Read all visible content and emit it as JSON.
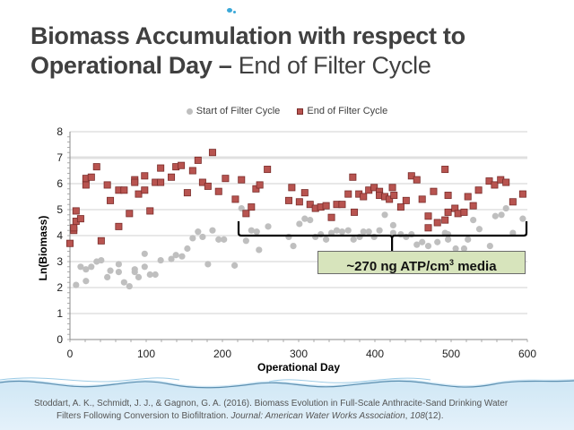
{
  "slide": {
    "title_bold": "Biomass Accumulation with respect to Operational Day –",
    "title_bold_line1": "Biomass Accumulation with respect to",
    "title_bold_line2": "Operational Day –",
    "title_light": "End of Filter Cycle",
    "callout_prefix": "~270 ng ATP/cm",
    "callout_sup": "3",
    "callout_suffix": " media",
    "citation_line1": "Stoddart, A. K., Schmidt, J. J., & Gagnon, G. A. (2016). Biomass Evolution in Full-Scale Anthracite-Sand Drinking Water",
    "citation_line2_plain": "Filters Following Conversion to Biofiltration.",
    "citation_journal": "Journal: American Water Works Association",
    "citation_volume": "108",
    "citation_issue": "(12)."
  },
  "chart_data": {
    "type": "scatter",
    "title": "",
    "xlabel": "Operational Day",
    "ylabel": "Ln(Biomass)",
    "xlim": [
      0,
      600
    ],
    "ylim": [
      0,
      8
    ],
    "xticks": [
      0,
      100,
      200,
      300,
      400,
      500,
      600
    ],
    "yticks": [
      0,
      1,
      2,
      3,
      4,
      5,
      6,
      7,
      8
    ],
    "grid": "horizontal",
    "legend_position": "top-center",
    "colors": {
      "start": "#bfbfbf",
      "end": "#b85450",
      "end_border": "#7a2c2a"
    },
    "annotation": {
      "text": "~270 ng ATP/cm3 media",
      "brace_x_range": [
        225,
        600
      ],
      "brace_y": 4.0
    },
    "series": [
      {
        "name": "Start of Filter Cycle",
        "marker": "circle",
        "points": [
          [
            8,
            2.1
          ],
          [
            14,
            2.8
          ],
          [
            21,
            2.7
          ],
          [
            21,
            2.25
          ],
          [
            28,
            2.8
          ],
          [
            35,
            3.0
          ],
          [
            41,
            3.05
          ],
          [
            49,
            2.4
          ],
          [
            53,
            2.65
          ],
          [
            64,
            2.9
          ],
          [
            64,
            2.6
          ],
          [
            71,
            2.2
          ],
          [
            78,
            2.05
          ],
          [
            85,
            2.7
          ],
          [
            85,
            2.6
          ],
          [
            90,
            2.4
          ],
          [
            98,
            3.3
          ],
          [
            98,
            2.8
          ],
          [
            105,
            2.5
          ],
          [
            112,
            2.5
          ],
          [
            119,
            3.05
          ],
          [
            133,
            3.1
          ],
          [
            139,
            3.25
          ],
          [
            147,
            3.2
          ],
          [
            154,
            3.5
          ],
          [
            161,
            3.9
          ],
          [
            168,
            4.15
          ],
          [
            174,
            3.95
          ],
          [
            181,
            2.9
          ],
          [
            187,
            4.2
          ],
          [
            195,
            3.85
          ],
          [
            202,
            3.85
          ],
          [
            216,
            2.85
          ],
          [
            225,
            5.05
          ],
          [
            231,
            3.8
          ],
          [
            238,
            4.2
          ],
          [
            245,
            4.15
          ],
          [
            248,
            3.45
          ],
          [
            260,
            4.35
          ],
          [
            287,
            3.95
          ],
          [
            293,
            3.6
          ],
          [
            301,
            4.45
          ],
          [
            308,
            4.65
          ],
          [
            315,
            4.6
          ],
          [
            322,
            3.95
          ],
          [
            329,
            4.05
          ],
          [
            336,
            3.85
          ],
          [
            343,
            4.1
          ],
          [
            350,
            4.2
          ],
          [
            357,
            4.15
          ],
          [
            365,
            4.2
          ],
          [
            372,
            3.85
          ],
          [
            380,
            3.95
          ],
          [
            385,
            4.15
          ],
          [
            392,
            4.15
          ],
          [
            399,
            3.95
          ],
          [
            406,
            4.2
          ],
          [
            413,
            4.8
          ],
          [
            424,
            4.4
          ],
          [
            424,
            4.1
          ],
          [
            434,
            4.05
          ],
          [
            441,
            3.95
          ],
          [
            448,
            4.05
          ],
          [
            455,
            3.65
          ],
          [
            462,
            3.75
          ],
          [
            470,
            3.6
          ],
          [
            482,
            3.75
          ],
          [
            492,
            4.1
          ],
          [
            496,
            4.05
          ],
          [
            496,
            3.85
          ],
          [
            506,
            3.5
          ],
          [
            517,
            3.5
          ],
          [
            522,
            3.85
          ],
          [
            529,
            4.6
          ],
          [
            537,
            4.25
          ],
          [
            551,
            3.6
          ],
          [
            558,
            4.75
          ],
          [
            566,
            4.8
          ],
          [
            572,
            5.05
          ],
          [
            581,
            4.1
          ],
          [
            594,
            4.65
          ]
        ]
      },
      {
        "name": "End of Filter Cycle",
        "marker": "square",
        "points": [
          [
            0,
            3.7
          ],
          [
            5,
            4.2
          ],
          [
            5,
            4.3
          ],
          [
            8,
            4.55
          ],
          [
            8,
            4.95
          ],
          [
            14,
            4.65
          ],
          [
            21,
            5.95
          ],
          [
            21,
            6.2
          ],
          [
            28,
            6.25
          ],
          [
            35,
            6.65
          ],
          [
            41,
            3.8
          ],
          [
            49,
            5.95
          ],
          [
            53,
            5.35
          ],
          [
            64,
            5.75
          ],
          [
            64,
            4.35
          ],
          [
            71,
            5.75
          ],
          [
            78,
            4.85
          ],
          [
            85,
            6.15
          ],
          [
            85,
            6.05
          ],
          [
            90,
            5.6
          ],
          [
            98,
            6.3
          ],
          [
            98,
            5.75
          ],
          [
            105,
            4.95
          ],
          [
            112,
            6.05
          ],
          [
            119,
            6.6
          ],
          [
            119,
            6.05
          ],
          [
            133,
            6.25
          ],
          [
            139,
            6.65
          ],
          [
            146,
            6.7
          ],
          [
            154,
            5.65
          ],
          [
            161,
            6.5
          ],
          [
            168,
            6.9
          ],
          [
            174,
            6.05
          ],
          [
            181,
            5.9
          ],
          [
            187,
            7.2
          ],
          [
            195,
            5.7
          ],
          [
            204,
            6.2
          ],
          [
            217,
            5.4
          ],
          [
            225,
            6.15
          ],
          [
            231,
            4.85
          ],
          [
            238,
            5.1
          ],
          [
            244,
            5.8
          ],
          [
            249,
            5.95
          ],
          [
            259,
            6.55
          ],
          [
            287,
            5.35
          ],
          [
            291,
            5.85
          ],
          [
            301,
            5.3
          ],
          [
            308,
            5.65
          ],
          [
            315,
            5.2
          ],
          [
            322,
            5.05
          ],
          [
            329,
            5.1
          ],
          [
            336,
            5.15
          ],
          [
            343,
            4.7
          ],
          [
            350,
            5.2
          ],
          [
            357,
            5.2
          ],
          [
            365,
            5.6
          ],
          [
            371,
            6.25
          ],
          [
            373,
            4.9
          ],
          [
            379,
            5.6
          ],
          [
            385,
            5.5
          ],
          [
            392,
            5.75
          ],
          [
            399,
            5.85
          ],
          [
            406,
            5.7
          ],
          [
            406,
            5.55
          ],
          [
            413,
            5.5
          ],
          [
            419,
            5.4
          ],
          [
            423,
            5.85
          ],
          [
            425,
            5.55
          ],
          [
            434,
            5.1
          ],
          [
            441,
            5.35
          ],
          [
            448,
            6.3
          ],
          [
            455,
            6.15
          ],
          [
            462,
            5.4
          ],
          [
            470,
            4.75
          ],
          [
            470,
            4.3
          ],
          [
            477,
            5.7
          ],
          [
            482,
            4.5
          ],
          [
            492,
            6.55
          ],
          [
            492,
            4.6
          ],
          [
            496,
            5.55
          ],
          [
            496,
            4.9
          ],
          [
            505,
            5.05
          ],
          [
            509,
            4.85
          ],
          [
            517,
            4.9
          ],
          [
            522,
            5.5
          ],
          [
            529,
            5.15
          ],
          [
            536,
            5.75
          ],
          [
            550,
            6.1
          ],
          [
            557,
            5.95
          ],
          [
            565,
            6.15
          ],
          [
            572,
            6.05
          ],
          [
            581,
            5.3
          ],
          [
            594,
            5.6
          ]
        ]
      }
    ]
  }
}
